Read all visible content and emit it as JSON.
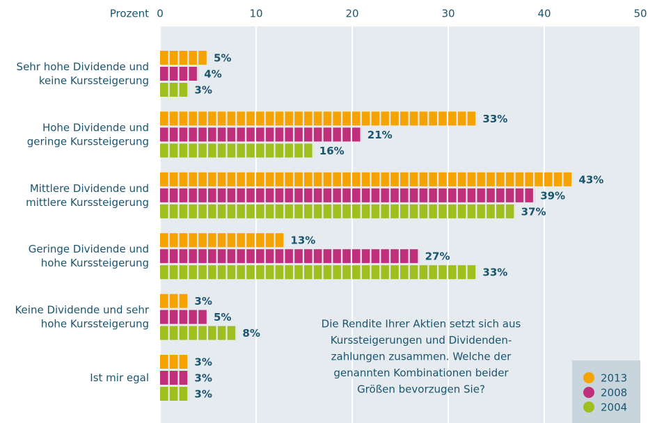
{
  "chart_data": {
    "type": "bar",
    "orientation": "horizontal",
    "x_label": "Prozent",
    "categories": [
      "Sehr hohe Dividende und\nkeine Kurssteigerung",
      "Hohe Dividende und\ngeringe Kurssteigerung",
      "Mittlere Dividende und\nmittlere Kurssteigerung",
      "Geringe Dividende und\nhohe Kurssteigerung",
      "Keine Dividende und sehr\nhohe Kurssteigerung",
      "Ist mir egal"
    ],
    "series": [
      {
        "name": "2013",
        "color": "#f5a300",
        "values": [
          5,
          33,
          43,
          13,
          3,
          3
        ],
        "value_labels": [
          "5%",
          "33%",
          "43%",
          "13%",
          "3%",
          "3%"
        ]
      },
      {
        "name": "2008",
        "color": "#c0307a",
        "values": [
          4,
          21,
          39,
          27,
          5,
          3
        ],
        "value_labels": [
          "4%",
          "21%",
          "39%",
          "27%",
          "5%",
          "3%"
        ]
      },
      {
        "name": "2004",
        "color": "#9fbf1e",
        "values": [
          3,
          16,
          37,
          33,
          8,
          3
        ],
        "value_labels": [
          "3%",
          "16%",
          "37%",
          "33%",
          "8%",
          "3%"
        ]
      }
    ],
    "xlim": [
      0,
      50
    ],
    "xticks": [
      0,
      10,
      20,
      30,
      40,
      50
    ],
    "grid": true,
    "annotation": [
      "Die Rendite Ihrer Aktien setzt sich aus",
      "Kurssteigerungen und Dividenden-",
      "zahlungen zusammen. Welche der",
      "genannten Kombinationen beider",
      "Größen bevorzugen Sie?"
    ],
    "legend": "bottom-right"
  }
}
